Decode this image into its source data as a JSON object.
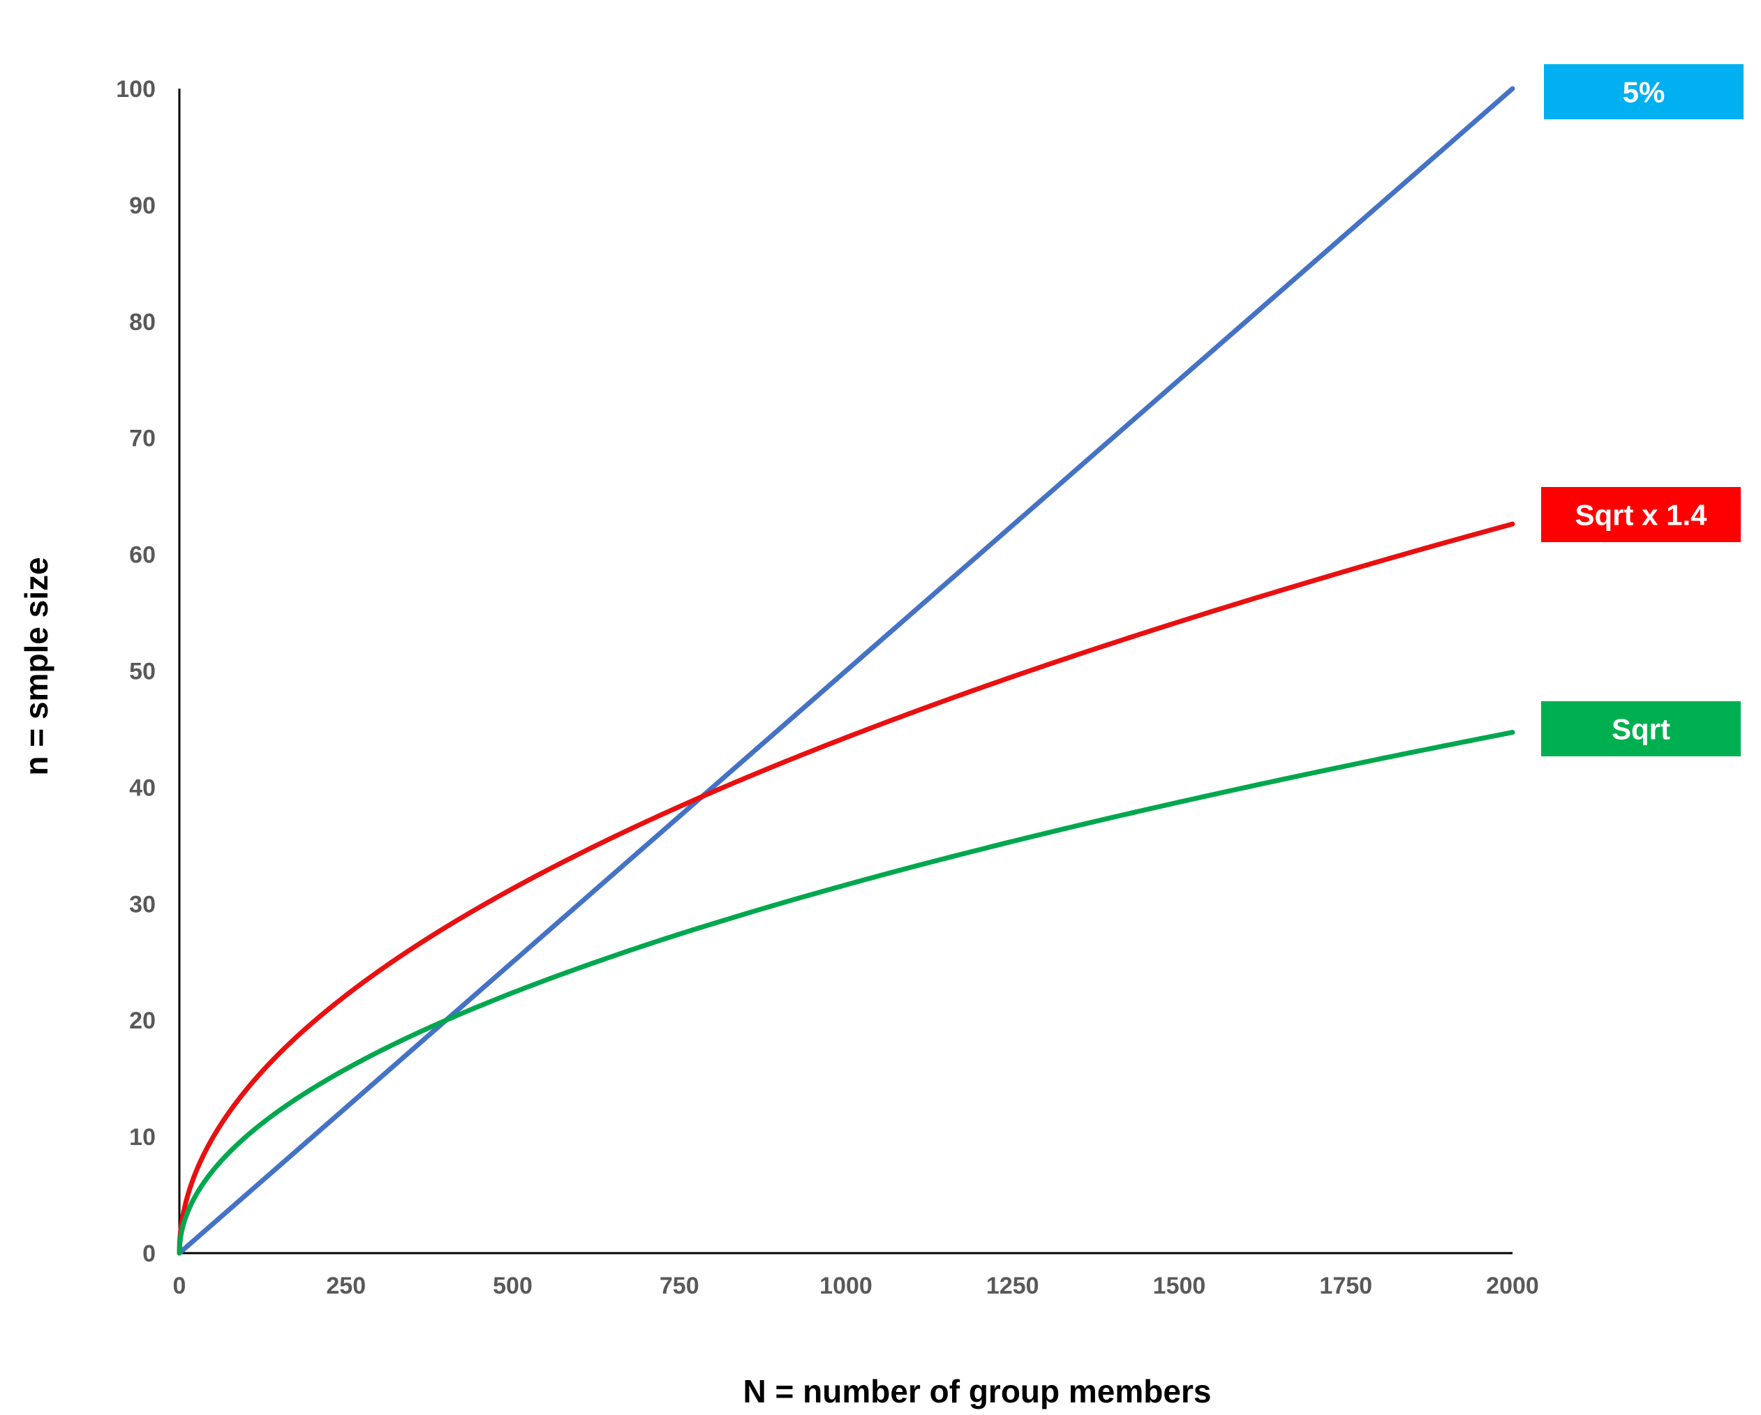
{
  "chart_data": {
    "type": "line",
    "title": "",
    "xlabel": "N = number of group members",
    "ylabel": "n = smple size",
    "xlim": [
      0,
      2000
    ],
    "ylim": [
      0,
      100
    ],
    "x_ticks": [
      0,
      250,
      500,
      750,
      1000,
      1250,
      1500,
      1750,
      2000
    ],
    "y_ticks": [
      0,
      10,
      20,
      30,
      40,
      50,
      60,
      70,
      80,
      90,
      100
    ],
    "grid": false,
    "legend": "right, labels at line ends",
    "x": [
      0,
      5,
      25,
      50,
      100,
      150,
      200,
      250,
      300,
      400,
      500,
      600,
      700,
      750,
      784,
      800,
      900,
      1000,
      1100,
      1200,
      1250,
      1300,
      1400,
      1500,
      1600,
      1700,
      1750,
      1800,
      1900,
      2000
    ],
    "series": [
      {
        "name": "5%",
        "color": "#4472C4",
        "values": [
          0,
          0.25,
          1.25,
          2.5,
          5,
          7.5,
          10,
          12.5,
          15,
          20,
          25,
          30,
          35,
          37.5,
          39.2,
          40,
          45,
          50,
          55,
          60,
          62.5,
          65,
          70,
          75,
          80,
          85,
          87.5,
          90,
          95,
          100
        ]
      },
      {
        "name": "Sqrt x 1.4",
        "color": "#E81010",
        "values": [
          0,
          3.13,
          7.0,
          9.9,
          14.0,
          17.15,
          19.8,
          22.14,
          24.25,
          28.0,
          31.3,
          34.29,
          37.04,
          38.34,
          39.2,
          39.6,
          42.0,
          44.27,
          46.43,
          48.5,
          49.5,
          50.48,
          52.38,
          54.22,
          56.0,
          57.72,
          58.57,
          59.4,
          61.03,
          62.61
        ]
      },
      {
        "name": "Sqrt",
        "color": "#00A74E",
        "values": [
          0,
          2.24,
          5.0,
          7.07,
          10.0,
          12.25,
          14.14,
          15.81,
          17.32,
          20.0,
          22.36,
          24.49,
          26.46,
          27.39,
          28.0,
          28.28,
          30.0,
          31.62,
          33.17,
          34.64,
          35.36,
          36.06,
          37.42,
          38.73,
          40.0,
          41.23,
          41.83,
          42.43,
          43.59,
          44.72
        ]
      }
    ]
  },
  "legend_items": [
    {
      "label": "5%",
      "bg": "#00B0F0"
    },
    {
      "label": "Sqrt x 1.4",
      "bg": "#FF0000"
    },
    {
      "label": "Sqrt",
      "bg": "#00B050"
    }
  ]
}
